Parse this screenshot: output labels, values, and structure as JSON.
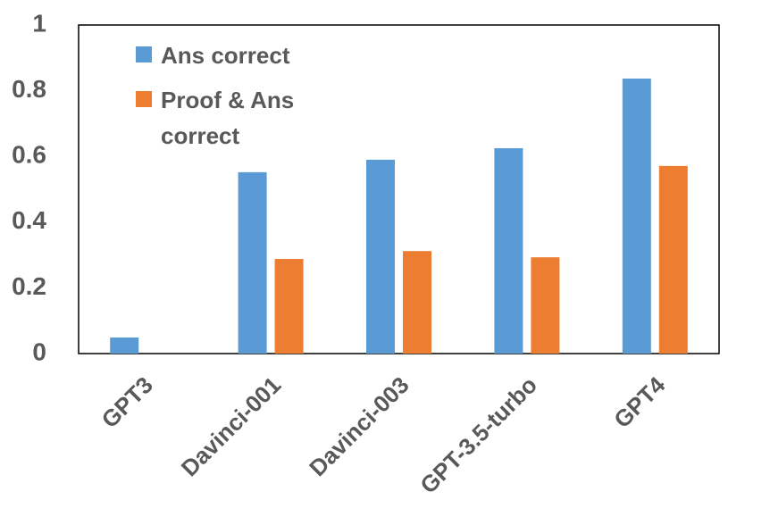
{
  "chart_data": {
    "type": "bar",
    "categories": [
      "GPT3",
      "Davinci-001",
      "Davinci-003",
      "GPT-3.5-turbo",
      "GPT4"
    ],
    "series": [
      {
        "name": "Ans correct",
        "color": "#5b9bd5",
        "values": [
          0.049,
          0.552,
          0.59,
          0.625,
          0.837
        ]
      },
      {
        "name": "Proof & Ans correct",
        "color": "#ed7d31",
        "values": [
          0,
          0.288,
          0.312,
          0.293,
          0.571
        ]
      }
    ],
    "ylim": [
      0,
      1
    ],
    "yticks": [
      0,
      0.2,
      0.4,
      0.6,
      0.8,
      1
    ],
    "grid": false,
    "legend": "upper left"
  }
}
